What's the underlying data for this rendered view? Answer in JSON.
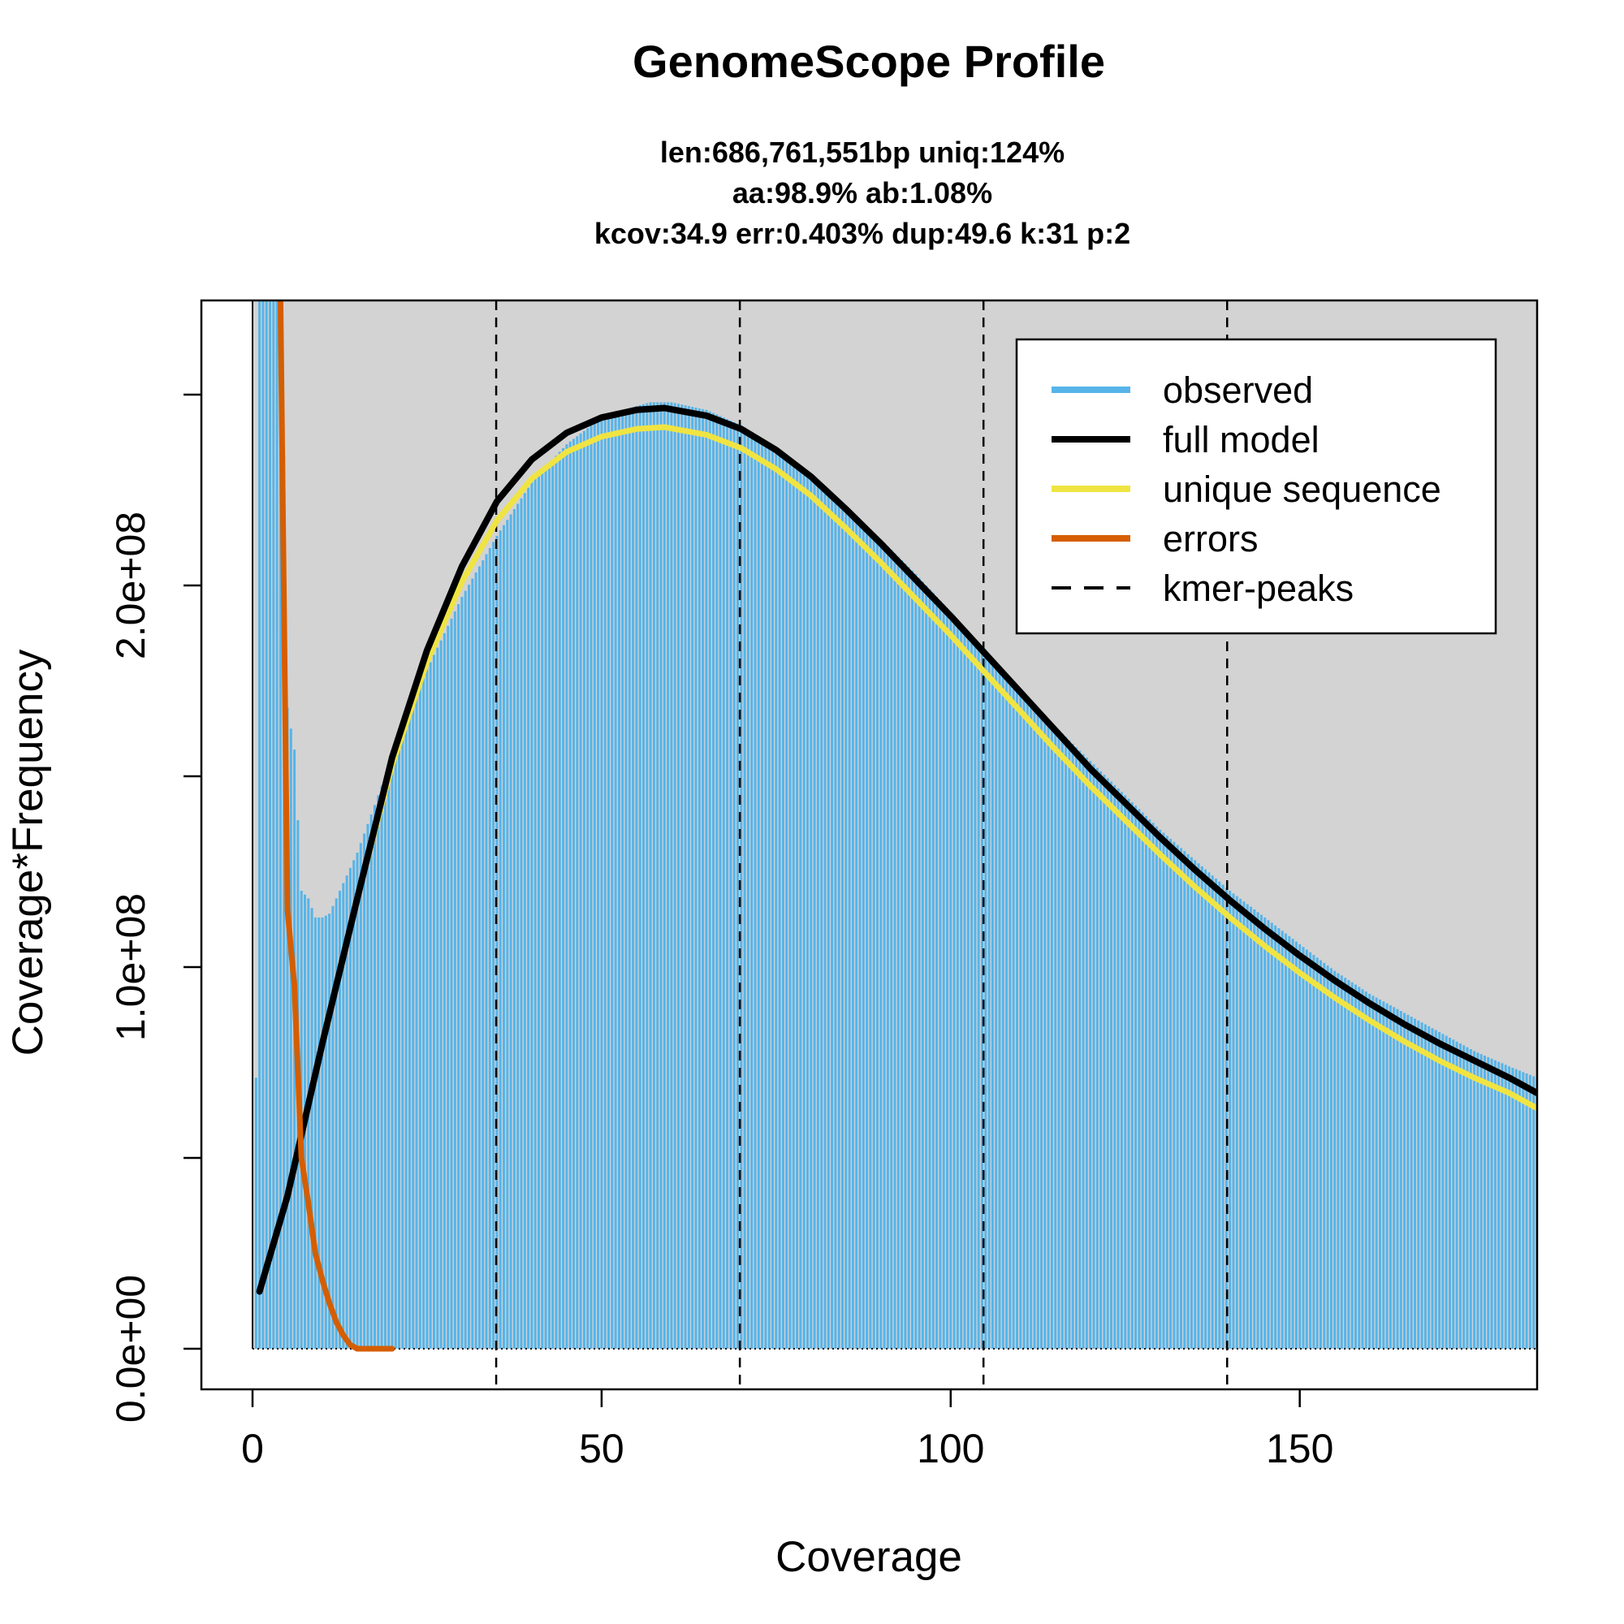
{
  "chart_data": {
    "type": "bar",
    "title": "GenomeScope Profile",
    "subtitle_lines": [
      "len:686,761,551bp uniq:124%",
      "aa:98.9% ab:1.08%",
      "kcov:34.9 err:0.403%  dup:49.6  k:31 p:2"
    ],
    "xlabel": "Coverage",
    "ylabel": "Coverage*Frequency",
    "xlim": [
      0,
      184
    ],
    "ylim": [
      0,
      275000000
    ],
    "x_ticks": [
      0,
      50,
      100,
      150
    ],
    "x_tick_labels": [
      "0",
      "50",
      "100",
      "150"
    ],
    "y_ticks": [
      0,
      50000000,
      100000000,
      150000000,
      200000000,
      250000000
    ],
    "y_tick_labels": [
      "0.0e+00",
      "",
      "1.0e+08",
      "",
      "2.0e+08",
      ""
    ],
    "kmer_peaks": [
      34.9,
      69.8,
      104.7,
      139.6
    ],
    "legend": {
      "position": "top-right",
      "entries": [
        {
          "label": "observed",
          "color": "#56B4E9",
          "style": "solid"
        },
        {
          "label": "full model",
          "color": "#000000",
          "style": "solid"
        },
        {
          "label": "unique sequence",
          "color": "#F0E442",
          "style": "solid"
        },
        {
          "label": "errors",
          "color": "#D55E00",
          "style": "solid"
        },
        {
          "label": "kmer-peaks",
          "color": "#000000",
          "style": "dashed"
        }
      ]
    },
    "observed_points": [
      [
        1,
        300000000
      ],
      [
        2,
        300000000
      ],
      [
        3,
        300000000
      ],
      [
        4,
        300000000
      ],
      [
        5,
        168000000
      ],
      [
        6,
        157000000
      ],
      [
        7,
        120000000
      ],
      [
        8,
        118000000
      ],
      [
        9,
        113000000
      ],
      [
        10,
        113000000
      ],
      [
        11,
        114000000
      ],
      [
        12,
        118000000
      ],
      [
        13,
        122000000
      ],
      [
        15,
        130000000
      ],
      [
        18,
        145000000
      ],
      [
        20,
        155000000
      ],
      [
        25,
        178000000
      ],
      [
        30,
        197000000
      ],
      [
        35,
        213000000
      ],
      [
        40,
        227000000
      ],
      [
        45,
        237000000
      ],
      [
        50,
        244000000
      ],
      [
        55,
        247000000
      ],
      [
        57,
        248000000
      ],
      [
        60,
        248000000
      ],
      [
        65,
        246000000
      ],
      [
        70,
        242000000
      ],
      [
        75,
        236000000
      ],
      [
        80,
        229000000
      ],
      [
        85,
        221000000
      ],
      [
        90,
        212000000
      ],
      [
        95,
        203000000
      ],
      [
        100,
        193000000
      ],
      [
        105,
        183000000
      ],
      [
        110,
        173000000
      ],
      [
        115,
        163000000
      ],
      [
        120,
        154000000
      ],
      [
        125,
        145000000
      ],
      [
        130,
        136000000
      ],
      [
        135,
        128000000
      ],
      [
        140,
        120000000
      ],
      [
        145,
        113000000
      ],
      [
        150,
        106000000
      ],
      [
        155,
        99000000
      ],
      [
        160,
        93000000
      ],
      [
        165,
        88000000
      ],
      [
        170,
        83000000
      ],
      [
        175,
        78000000
      ],
      [
        180,
        74000000
      ],
      [
        184,
        71000000
      ]
    ],
    "series": [
      {
        "name": "full model",
        "color": "#000000",
        "points": [
          [
            1,
            15000000
          ],
          [
            5,
            40000000
          ],
          [
            10,
            80000000
          ],
          [
            15,
            118000000
          ],
          [
            20,
            155000000
          ],
          [
            25,
            183000000
          ],
          [
            30,
            205000000
          ],
          [
            35,
            222000000
          ],
          [
            40,
            233000000
          ],
          [
            45,
            240000000
          ],
          [
            50,
            244000000
          ],
          [
            55,
            246000000
          ],
          [
            59,
            246500000
          ],
          [
            65,
            244500000
          ],
          [
            70,
            241000000
          ],
          [
            75,
            235500000
          ],
          [
            80,
            228500000
          ],
          [
            85,
            220000000
          ],
          [
            90,
            211000000
          ],
          [
            95,
            201500000
          ],
          [
            100,
            192000000
          ],
          [
            105,
            182000000
          ],
          [
            110,
            172000000
          ],
          [
            115,
            162000000
          ],
          [
            120,
            152000000
          ],
          [
            125,
            143000000
          ],
          [
            130,
            134000000
          ],
          [
            135,
            125500000
          ],
          [
            140,
            117500000
          ],
          [
            145,
            110000000
          ],
          [
            150,
            103000000
          ],
          [
            155,
            96500000
          ],
          [
            160,
            90500000
          ],
          [
            165,
            85000000
          ],
          [
            170,
            80000000
          ],
          [
            175,
            75500000
          ],
          [
            180,
            71000000
          ],
          [
            184,
            67000000
          ]
        ]
      },
      {
        "name": "unique sequence",
        "color": "#F0E442",
        "points": [
          [
            1,
            15000000
          ],
          [
            5,
            40000000
          ],
          [
            10,
            80000000
          ],
          [
            15,
            118000000
          ],
          [
            20,
            153000000
          ],
          [
            25,
            180000000
          ],
          [
            30,
            201000000
          ],
          [
            35,
            217000000
          ],
          [
            40,
            228000000
          ],
          [
            45,
            235000000
          ],
          [
            50,
            239000000
          ],
          [
            55,
            241000000
          ],
          [
            59,
            241500000
          ],
          [
            65,
            239500000
          ],
          [
            70,
            236000000
          ],
          [
            75,
            230500000
          ],
          [
            80,
            223500000
          ],
          [
            85,
            215000000
          ],
          [
            90,
            206000000
          ],
          [
            95,
            196500000
          ],
          [
            100,
            187000000
          ],
          [
            105,
            177000000
          ],
          [
            110,
            167000000
          ],
          [
            115,
            157000000
          ],
          [
            120,
            147500000
          ],
          [
            125,
            138500000
          ],
          [
            130,
            129500000
          ],
          [
            135,
            121000000
          ],
          [
            140,
            113000000
          ],
          [
            145,
            105500000
          ],
          [
            150,
            98500000
          ],
          [
            155,
            92000000
          ],
          [
            160,
            86000000
          ],
          [
            165,
            80500000
          ],
          [
            170,
            75500000
          ],
          [
            175,
            71000000
          ],
          [
            180,
            67000000
          ],
          [
            184,
            63000000
          ]
        ]
      },
      {
        "name": "errors",
        "color": "#D55E00",
        "points": [
          [
            4,
            275000000
          ],
          [
            5,
            115000000
          ],
          [
            6,
            95000000
          ],
          [
            7,
            50000000
          ],
          [
            8,
            38000000
          ],
          [
            9,
            25000000
          ],
          [
            10,
            18000000
          ],
          [
            11,
            12000000
          ],
          [
            12,
            7000000
          ],
          [
            13,
            3500000
          ],
          [
            14,
            1000000
          ],
          [
            15,
            0
          ],
          [
            20,
            0
          ]
        ]
      }
    ]
  }
}
